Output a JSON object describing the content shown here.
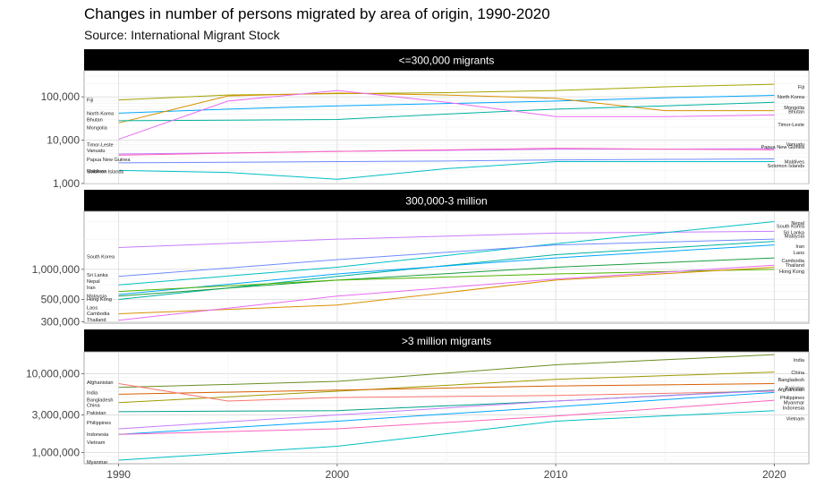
{
  "title": "Changes in number of persons migrated by area of origin, 1990-2020",
  "subtitle": "Source: International Migrant Stock",
  "chart_data": [
    {
      "type": "line",
      "facet": "<=300,000 migrants",
      "scale": "log",
      "ylim": [
        1000,
        400000
      ],
      "yticks": [
        1000,
        10000,
        100000
      ],
      "ytick_labels": [
        "1,000",
        "10,000",
        "100,000"
      ],
      "series": [
        {
          "name": "Fiji",
          "color": "#a3a500",
          "x": [
            1990,
            1995,
            2000,
            2005,
            2010,
            2015,
            2020
          ],
          "y": [
            85000,
            110000,
            118000,
            125000,
            140000,
            170000,
            195000
          ]
        },
        {
          "name": "North Korea",
          "color": "#00a6ff",
          "x": [
            1990,
            1995,
            2000,
            2005,
            2010,
            2015,
            2020
          ],
          "y": [
            42000,
            52000,
            62000,
            70000,
            80000,
            95000,
            108000
          ]
        },
        {
          "name": "Bhutan",
          "color": "#d89000",
          "x": [
            1990,
            1995,
            2000,
            2005,
            2010,
            2015,
            2020
          ],
          "y": [
            25000,
            105000,
            122000,
            110000,
            92000,
            48000,
            48000
          ]
        },
        {
          "name": "Mongolia",
          "color": "#00b0a0",
          "x": [
            1990,
            1995,
            2000,
            2005,
            2010,
            2015,
            2020
          ],
          "y": [
            28000,
            29000,
            30000,
            40000,
            52000,
            62000,
            75000
          ]
        },
        {
          "name": "Timor-Leste",
          "color": "#e76bf3",
          "x": [
            1990,
            1995,
            2000,
            2005,
            2010,
            2015,
            2020
          ],
          "y": [
            10500,
            80000,
            140000,
            75000,
            35000,
            35000,
            38000
          ]
        },
        {
          "name": "Vanuatu",
          "color": "#c77cff",
          "x": [
            1990,
            1995,
            2000,
            2005,
            2010,
            2015,
            2020
          ],
          "y": [
            4800,
            5100,
            5500,
            5800,
            6200,
            6200,
            6400
          ]
        },
        {
          "name": "Papua New Guinea",
          "color": "#ff62bc",
          "x": [
            1990,
            1995,
            2000,
            2005,
            2010,
            2015,
            2020
          ],
          "y": [
            4500,
            5000,
            5500,
            6000,
            6500,
            6200,
            6000
          ]
        },
        {
          "name": "Maldives",
          "color": "#6e8bff",
          "x": [
            1990,
            1995,
            2000,
            2005,
            2010,
            2015,
            2020
          ],
          "y": [
            3000,
            3100,
            3200,
            3300,
            3500,
            3600,
            3700
          ]
        },
        {
          "name": "Solomon Islands",
          "color": "#00bfc4",
          "x": [
            1990,
            1995,
            2000,
            2005,
            2010,
            2015,
            2020
          ],
          "y": [
            2000,
            1800,
            1250,
            2200,
            3200,
            3200,
            3200
          ]
        }
      ],
      "labels_left": [
        {
          "text": "Fiji",
          "value": 85000
        },
        {
          "text": "North Korea",
          "value": 42000
        },
        {
          "text": "Bhutan",
          "value": 30000
        },
        {
          "text": "Mongolia",
          "value": 19500
        },
        {
          "text": "Timor-Leste",
          "value": 8000
        },
        {
          "text": "Vanuatu",
          "value": 5800
        },
        {
          "text": "Papua New Guinea",
          "value": 3600
        },
        {
          "text": "Maldives",
          "value": 1950
        },
        {
          "text": "Solomon Islands",
          "value": 1900
        }
      ],
      "labels_right": [
        {
          "text": "Fiji",
          "value": 170000
        },
        {
          "text": "North Korea",
          "value": 100000
        },
        {
          "text": "Mongolia",
          "value": 57000
        },
        {
          "text": "Bhutan",
          "value": 46000
        },
        {
          "text": "Timor-Leste",
          "value": 23000
        },
        {
          "text": "Vanuatu",
          "value": 8200
        },
        {
          "text": "Papua New Guinea",
          "value": 7000
        },
        {
          "text": "Maldives",
          "value": 3200
        },
        {
          "text": "Solomon Islands",
          "value": 2600
        }
      ]
    },
    {
      "type": "line",
      "facet": "300,000-3 million",
      "scale": "log",
      "ylim": [
        290000,
        3800000
      ],
      "yticks": [
        300000,
        500000,
        1000000
      ],
      "ytick_labels": [
        "300,000",
        "500,000",
        "1,000,000"
      ],
      "series": [
        {
          "name": "South Korea",
          "color": "#c77cff",
          "x": [
            1990,
            2000,
            2010,
            2020
          ],
          "y": [
            1650000,
            2000000,
            2300000,
            2400000
          ]
        },
        {
          "name": "Nepal",
          "color": "#00bfc4",
          "x": [
            1990,
            2000,
            2010,
            2020
          ],
          "y": [
            700000,
            1050000,
            1800000,
            3000000
          ]
        },
        {
          "name": "Sri Lanka",
          "color": "#6e8bff",
          "x": [
            1990,
            2000,
            2010,
            2020
          ],
          "y": [
            850000,
            1250000,
            1750000,
            2000000
          ]
        },
        {
          "name": "Malaysia",
          "color": "#00b0a0",
          "x": [
            1990,
            2000,
            2010,
            2020
          ],
          "y": [
            500000,
            850000,
            1400000,
            1900000
          ]
        },
        {
          "name": "Iran",
          "color": "#00a6ff",
          "x": [
            1990,
            2000,
            2010,
            2020
          ],
          "y": [
            560000,
            900000,
            1300000,
            1750000
          ]
        },
        {
          "name": "Laos",
          "color": "#1b9e3e",
          "x": [
            1990,
            2000,
            2010,
            2020
          ],
          "y": [
            540000,
            780000,
            1050000,
            1300000
          ]
        },
        {
          "name": "Hong Kong",
          "color": "#53b400",
          "x": [
            1990,
            2000,
            2010,
            2020
          ],
          "y": [
            600000,
            780000,
            900000,
            1000000
          ]
        },
        {
          "name": "Cambodia",
          "color": "#d89000",
          "x": [
            1990,
            2000,
            2010,
            2020
          ],
          "y": [
            360000,
            440000,
            780000,
            1050000
          ]
        },
        {
          "name": "Thailand",
          "color": "#e76bf3",
          "x": [
            1990,
            2000,
            2010,
            2020
          ],
          "y": [
            310000,
            540000,
            800000,
            1100000
          ]
        }
      ],
      "labels_left": [
        {
          "text": "South Korea",
          "value": 1350000
        },
        {
          "text": "Sri Lanka",
          "value": 880000
        },
        {
          "text": "Nepal",
          "value": 760000
        },
        {
          "text": "Iran",
          "value": 660000
        },
        {
          "text": "Malaysia",
          "value": 545000
        },
        {
          "text": "Hong Kong",
          "value": 505000
        },
        {
          "text": "Laos",
          "value": 415000
        },
        {
          "text": "Cambodia",
          "value": 365000
        },
        {
          "text": "Thailand",
          "value": 315000
        }
      ],
      "labels_right": [
        {
          "text": "Nepal",
          "value": 2900000
        },
        {
          "text": "South Korea",
          "value": 2700000
        },
        {
          "text": "Sri Lanka",
          "value": 2350000
        },
        {
          "text": "Malaysia",
          "value": 2150000
        },
        {
          "text": "Iran",
          "value": 1700000
        },
        {
          "text": "Laos",
          "value": 1480000
        },
        {
          "text": "Cambodia",
          "value": 1220000
        },
        {
          "text": "Thailand",
          "value": 1100000
        },
        {
          "text": "Hong Kong",
          "value": 960000
        }
      ]
    },
    {
      "type": "line",
      "facet": ">3 million migrants",
      "scale": "log",
      "ylim": [
        720000,
        19000000
      ],
      "yticks": [
        1000000,
        3000000,
        10000000
      ],
      "ytick_labels": [
        "1,000,000",
        "3,000,000",
        "10,000,000"
      ],
      "series": [
        {
          "name": "India",
          "color": "#6b8e23",
          "x": [
            1990,
            2000,
            2010,
            2020
          ],
          "y": [
            6700000,
            8000000,
            13000000,
            17500000
          ]
        },
        {
          "name": "China",
          "color": "#9e9a00",
          "x": [
            1990,
            2000,
            2010,
            2020
          ],
          "y": [
            4300000,
            6000000,
            8500000,
            10500000
          ]
        },
        {
          "name": "Bangladesh",
          "color": "#d95f02",
          "x": [
            1990,
            2000,
            2010,
            2020
          ],
          "y": [
            5500000,
            6200000,
            7000000,
            7500000
          ]
        },
        {
          "name": "Afghanistan",
          "color": "#f8766d",
          "x": [
            1990,
            1995,
            2000,
            2010,
            2020
          ],
          "y": [
            7500000,
            4500000,
            5000000,
            5300000,
            6000000
          ]
        },
        {
          "name": "Pakistan",
          "color": "#00a087",
          "x": [
            1990,
            2000,
            2010,
            2020
          ],
          "y": [
            3300000,
            3400000,
            4500000,
            6200000
          ]
        },
        {
          "name": "Philippines",
          "color": "#c77cff",
          "x": [
            1990,
            2000,
            2010,
            2020
          ],
          "y": [
            2000000,
            3000000,
            4500000,
            6100000
          ]
        },
        {
          "name": "Myanmar",
          "color": "#00a6ff",
          "x": [
            1990,
            2000,
            2010,
            2020
          ],
          "y": [
            1700000,
            2500000,
            3800000,
            5800000
          ]
        },
        {
          "name": "Indonesia",
          "color": "#ff62bc",
          "x": [
            1990,
            2000,
            2010,
            2020
          ],
          "y": [
            1700000,
            2000000,
            2900000,
            4600000
          ]
        },
        {
          "name": "Vietnam",
          "color": "#00bfc4",
          "x": [
            1990,
            2000,
            2010,
            2020
          ],
          "y": [
            800000,
            1200000,
            2500000,
            3400000
          ]
        }
      ],
      "labels_left": [
        {
          "text": "Afghanistan",
          "value": 7800000
        },
        {
          "text": "India",
          "value": 5800000
        },
        {
          "text": "Bangladesh",
          "value": 4700000
        },
        {
          "text": "China",
          "value": 4000000
        },
        {
          "text": "Pakistan",
          "value": 3200000
        },
        {
          "text": "Philippines",
          "value": 2400000
        },
        {
          "text": "Indonesia",
          "value": 1700000
        },
        {
          "text": "Vietnam",
          "value": 1350000
        },
        {
          "text": "Myanmar",
          "value": 760000
        }
      ],
      "labels_right": [
        {
          "text": "India",
          "value": 15000000
        },
        {
          "text": "China",
          "value": 10400000
        },
        {
          "text": "Bangladesh",
          "value": 8400000
        },
        {
          "text": "Afghanistan",
          "value": 6300000
        },
        {
          "text": "Pakistan",
          "value": 6600000
        },
        {
          "text": "Philippines",
          "value": 5000000
        },
        {
          "text": "Myanmar",
          "value": 4300000
        },
        {
          "text": "Indonesia",
          "value": 3700000
        },
        {
          "text": "Vietnam",
          "value": 2700000
        }
      ]
    }
  ],
  "x_axis": {
    "range": [
      1988.5,
      2021.5
    ],
    "ticks": [
      1990,
      2000,
      2010,
      2020
    ],
    "tick_labels": [
      "1990",
      "2000",
      "2010",
      "2020"
    ],
    "minor_ticks": [
      1995,
      2005,
      2015
    ]
  }
}
